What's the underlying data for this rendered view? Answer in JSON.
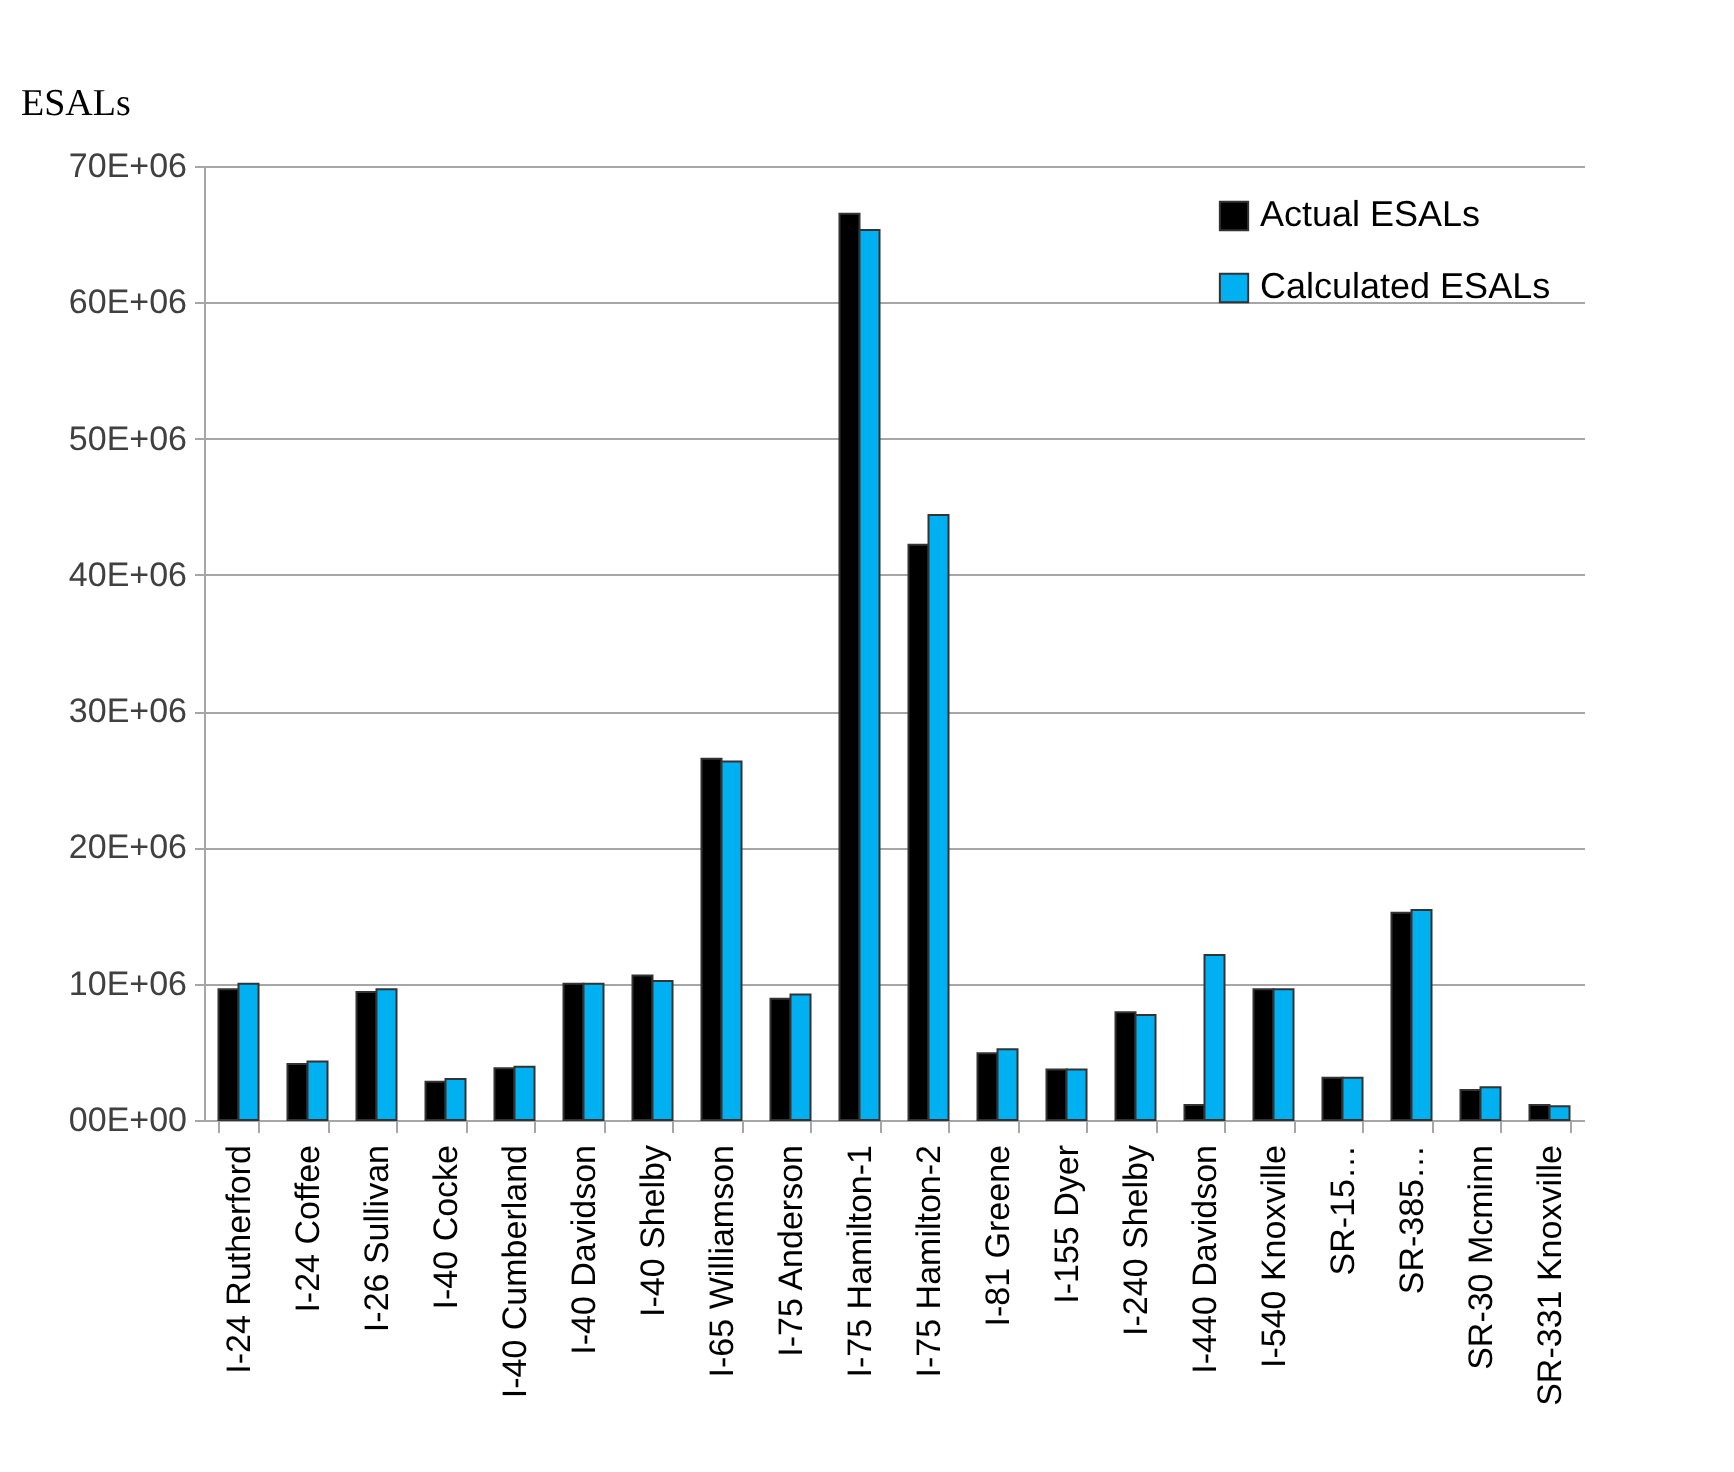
{
  "chart_data": {
    "type": "bar",
    "ylabel": "ESALs",
    "categories": [
      "I-24 Rutherford",
      "I-24 Coffee",
      "I-26 Sullivan",
      "I-40 Cocke",
      "I-40 Cumberland",
      "I-40 Davidson",
      "I-40 Shelby",
      "I-65 Williamson",
      "I-75 Anderson",
      "I-75 Hamilton-1",
      "I-75 Hamilton-2",
      "I-81 Greene",
      "I-155 Dyer",
      "I-240 Shelby",
      "I-440 Davidson",
      "I-540 Knoxville",
      "SR-15…",
      "SR-385…",
      "SR-30 Mcminn",
      "SR-331 Knoxville"
    ],
    "series": [
      {
        "name": "Actual ESALs",
        "color": "#000000",
        "values": [
          9600000,
          4100000,
          9400000,
          2800000,
          3800000,
          10000000,
          10600000,
          26500000,
          8900000,
          66500000,
          42200000,
          4900000,
          3700000,
          7900000,
          1100000,
          9600000,
          3100000,
          15200000,
          2200000,
          1100000
        ]
      },
      {
        "name": "Calculated ESALs",
        "color": "#00b0f0",
        "values": [
          10000000,
          4300000,
          9600000,
          3000000,
          3900000,
          10000000,
          10200000,
          26300000,
          9200000,
          65300000,
          44400000,
          5200000,
          3700000,
          7700000,
          12100000,
          9600000,
          3100000,
          15400000,
          2400000,
          1000000
        ]
      }
    ],
    "ylim": [
      0,
      70000000
    ],
    "yticks": [
      {
        "value": 0,
        "label": "00E+00"
      },
      {
        "value": 10000000,
        "label": "10E+06"
      },
      {
        "value": 20000000,
        "label": "20E+06"
      },
      {
        "value": 30000000,
        "label": "30E+06"
      },
      {
        "value": 40000000,
        "label": "40E+06"
      },
      {
        "value": 50000000,
        "label": "50E+06"
      },
      {
        "value": 60000000,
        "label": "60E+06"
      },
      {
        "value": 70000000,
        "label": "70E+06"
      }
    ],
    "grid": "y",
    "legend": "top right"
  }
}
